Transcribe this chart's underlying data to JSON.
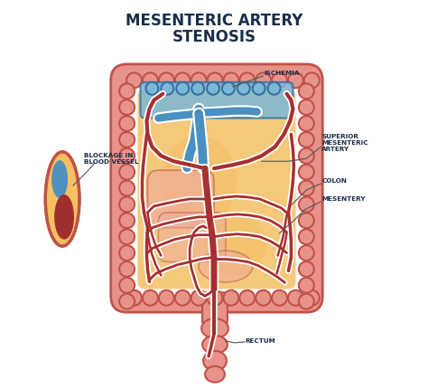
{
  "title_line1": "MESENTERIC ARTERY",
  "title_line2": "STENOSIS",
  "title_color": "#1a2e4a",
  "title_fontsize": 12,
  "bg_color": "#ffffff",
  "labels": {
    "blockage": "BLOCKAGE IN\nBLOOD VESSEL",
    "ischemia": "ISCHEMIA",
    "superior": "SUPERIOR\nMESENTERIC\nARTERY",
    "colon": "COLON",
    "mesentery": "MESENTERY",
    "rectum": "RECTUM"
  },
  "label_color": "#1a2e4a",
  "label_fontsize": 5.2,
  "colon_fill": "#e8938a",
  "colon_edge": "#c05248",
  "mesentery_fill": "#f5c97a",
  "mesentery_inner": "#f0b85a",
  "artery_red": "#a83030",
  "artery_blue": "#4a90c0",
  "ischemia_fill": "#7ab8d8",
  "ischemia_edge": "#3870a0",
  "vessel_outer": "#f5c060",
  "vessel_red": "#a03030",
  "vessel_blue": "#5090c0",
  "vessel_wall": "#c05248",
  "white_line": "#ffffff",
  "line_color": "#555555",
  "rectum_fill": "#e8938a",
  "rectum_edge": "#c05248"
}
